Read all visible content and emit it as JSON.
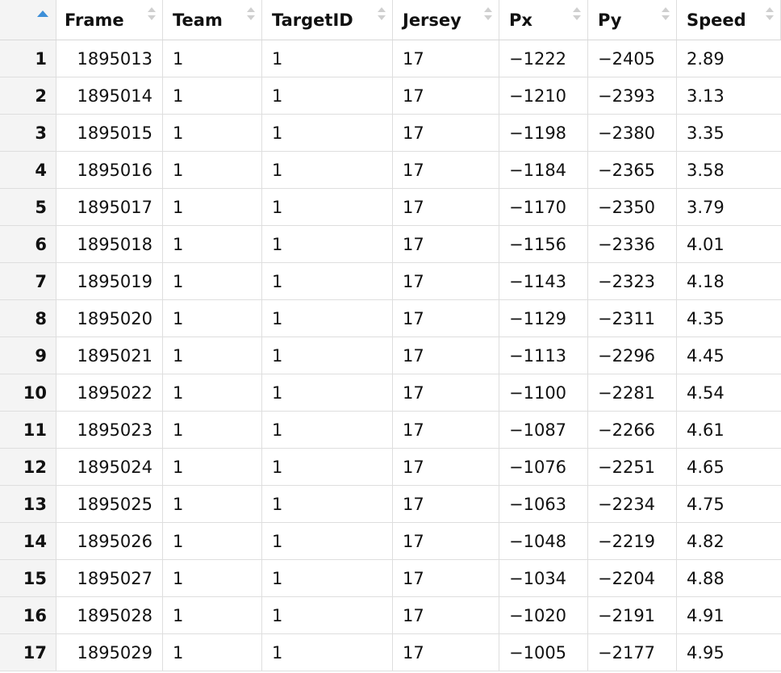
{
  "table": {
    "columns": [
      "Frame",
      "Team",
      "TargetID",
      "Jersey",
      "Px",
      "Py",
      "Speed"
    ],
    "sort_indicator": "sort-ascending-icon",
    "rows": [
      {
        "n": "1",
        "cells": [
          "1895013",
          "1",
          "1",
          "17",
          "−1222",
          "−2405",
          "2.89"
        ]
      },
      {
        "n": "2",
        "cells": [
          "1895014",
          "1",
          "1",
          "17",
          "−1210",
          "−2393",
          "3.13"
        ]
      },
      {
        "n": "3",
        "cells": [
          "1895015",
          "1",
          "1",
          "17",
          "−1198",
          "−2380",
          "3.35"
        ]
      },
      {
        "n": "4",
        "cells": [
          "1895016",
          "1",
          "1",
          "17",
          "−1184",
          "−2365",
          "3.58"
        ]
      },
      {
        "n": "5",
        "cells": [
          "1895017",
          "1",
          "1",
          "17",
          "−1170",
          "−2350",
          "3.79"
        ]
      },
      {
        "n": "6",
        "cells": [
          "1895018",
          "1",
          "1",
          "17",
          "−1156",
          "−2336",
          "4.01"
        ]
      },
      {
        "n": "7",
        "cells": [
          "1895019",
          "1",
          "1",
          "17",
          "−1143",
          "−2323",
          "4.18"
        ]
      },
      {
        "n": "8",
        "cells": [
          "1895020",
          "1",
          "1",
          "17",
          "−1129",
          "−2311",
          "4.35"
        ]
      },
      {
        "n": "9",
        "cells": [
          "1895021",
          "1",
          "1",
          "17",
          "−1113",
          "−2296",
          "4.45"
        ]
      },
      {
        "n": "10",
        "cells": [
          "1895022",
          "1",
          "1",
          "17",
          "−1100",
          "−2281",
          "4.54"
        ]
      },
      {
        "n": "11",
        "cells": [
          "1895023",
          "1",
          "1",
          "17",
          "−1087",
          "−2266",
          "4.61"
        ]
      },
      {
        "n": "12",
        "cells": [
          "1895024",
          "1",
          "1",
          "17",
          "−1076",
          "−2251",
          "4.65"
        ]
      },
      {
        "n": "13",
        "cells": [
          "1895025",
          "1",
          "1",
          "17",
          "−1063",
          "−2234",
          "4.75"
        ]
      },
      {
        "n": "14",
        "cells": [
          "1895026",
          "1",
          "1",
          "17",
          "−1048",
          "−2219",
          "4.82"
        ]
      },
      {
        "n": "15",
        "cells": [
          "1895027",
          "1",
          "1",
          "17",
          "−1034",
          "−2204",
          "4.88"
        ]
      },
      {
        "n": "16",
        "cells": [
          "1895028",
          "1",
          "1",
          "17",
          "−1020",
          "−2191",
          "4.91"
        ]
      },
      {
        "n": "17",
        "cells": [
          "1895029",
          "1",
          "1",
          "17",
          "−1005",
          "−2177",
          "4.95"
        ]
      }
    ]
  }
}
